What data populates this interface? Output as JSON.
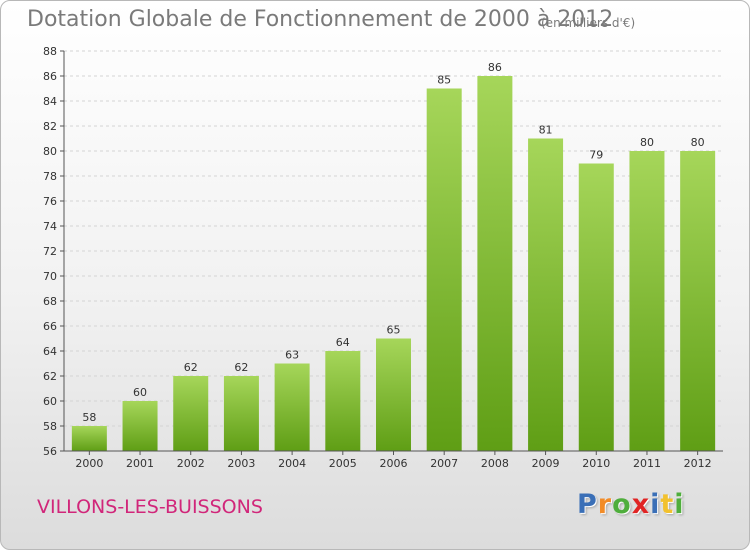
{
  "title": "Dotation Globale de Fonctionnement de 2000 à 2012",
  "unit": "(en milliers d'€)",
  "commune": "VILLONS-LES-BUISSONS",
  "logo": {
    "text": "Proxiti",
    "letters": [
      {
        "char": "P",
        "color": "#3a6fb7"
      },
      {
        "char": "r",
        "color": "#f28c28"
      },
      {
        "char": "o",
        "color": "#4fae3c"
      },
      {
        "char": "x",
        "color": "#e02424"
      },
      {
        "char": "i",
        "color": "#3a6fb7"
      },
      {
        "char": "t",
        "color": "#f2c12e"
      },
      {
        "char": "i",
        "color": "#4fae3c"
      }
    ]
  },
  "colors": {
    "bar_light": "#a6d65a",
    "bar_dark": "#5f9e15",
    "title": "#7a7a7a",
    "commune": "#d1267a"
  },
  "chart_data": {
    "type": "bar",
    "title": "Dotation Globale de Fonctionnement de 2000 à 2012",
    "subtitle": "(en milliers d'€)",
    "xlabel": "",
    "ylabel": "",
    "categories": [
      "2000",
      "2001",
      "2002",
      "2003",
      "2004",
      "2005",
      "2006",
      "2007",
      "2008",
      "2009",
      "2010",
      "2011",
      "2012"
    ],
    "values": [
      58,
      60,
      62,
      62,
      63,
      64,
      65,
      85,
      86,
      81,
      79,
      80,
      80
    ],
    "ylim": [
      56,
      88
    ],
    "yticks": [
      56,
      58,
      60,
      62,
      64,
      66,
      68,
      70,
      72,
      74,
      76,
      78,
      80,
      82,
      84,
      86,
      88
    ],
    "grid": true,
    "legend": "none"
  }
}
